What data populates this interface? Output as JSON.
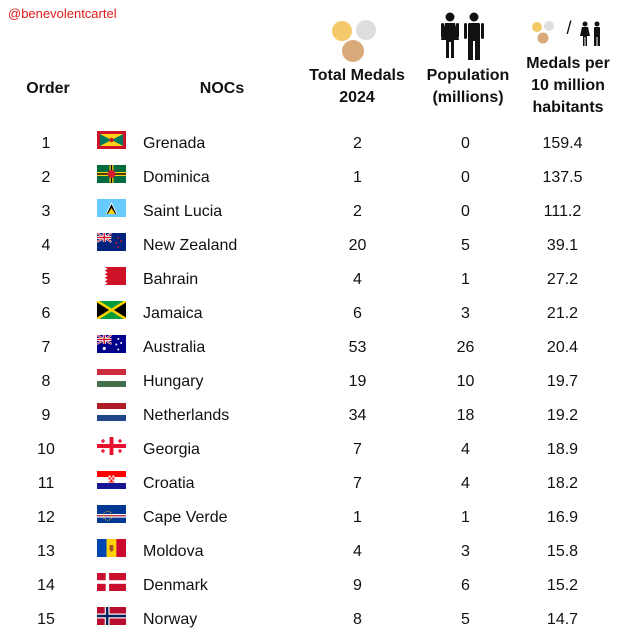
{
  "watermark": "@benevolentcartel",
  "headers": {
    "order": "Order",
    "nocs": "NOCs",
    "total_line1": "Total Medals",
    "total_line2": "2024",
    "pop_line1": "Population",
    "pop_line2": "(millions)",
    "rate_line1": "Medals per",
    "rate_line2": "10 million",
    "rate_line3": "habitants"
  },
  "header_icons": {
    "medals": "medals-icon",
    "population": "man-woman-icon",
    "ratio": "medals-per-people-icon",
    "ratio_separator": "/"
  },
  "colors": {
    "watermark": "#e01b1b",
    "gold": "#f3c969",
    "silver": "#dedede",
    "bronze": "#d9a97a"
  },
  "chart_data": {
    "type": "table",
    "columns": [
      "Order",
      "NOCs",
      "Total Medals 2024",
      "Population (millions)",
      "Medals per 10 million habitants"
    ],
    "rows": [
      {
        "order": "1",
        "noc": "Grenada",
        "flag": "grenada-flag",
        "total": "2",
        "population": "0",
        "rate": "159.4"
      },
      {
        "order": "2",
        "noc": "Dominica",
        "flag": "dominica-flag",
        "total": "1",
        "population": "0",
        "rate": "137.5"
      },
      {
        "order": "3",
        "noc": "Saint Lucia",
        "flag": "saint-lucia-flag",
        "total": "2",
        "population": "0",
        "rate": "111.2"
      },
      {
        "order": "4",
        "noc": "New Zealand",
        "flag": "new-zealand-flag",
        "total": "20",
        "population": "5",
        "rate": "39.1"
      },
      {
        "order": "5",
        "noc": "Bahrain",
        "flag": "bahrain-flag",
        "total": "4",
        "population": "1",
        "rate": "27.2"
      },
      {
        "order": "6",
        "noc": "Jamaica",
        "flag": "jamaica-flag",
        "total": "6",
        "population": "3",
        "rate": "21.2"
      },
      {
        "order": "7",
        "noc": "Australia",
        "flag": "australia-flag",
        "total": "53",
        "population": "26",
        "rate": "20.4"
      },
      {
        "order": "8",
        "noc": "Hungary",
        "flag": "hungary-flag",
        "total": "19",
        "population": "10",
        "rate": "19.7"
      },
      {
        "order": "9",
        "noc": "Netherlands",
        "flag": "netherlands-flag",
        "total": "34",
        "population": "18",
        "rate": "19.2"
      },
      {
        "order": "10",
        "noc": "Georgia",
        "flag": "georgia-flag",
        "total": "7",
        "population": "4",
        "rate": "18.9"
      },
      {
        "order": "11",
        "noc": "Croatia",
        "flag": "croatia-flag",
        "total": "7",
        "population": "4",
        "rate": "18.2"
      },
      {
        "order": "12",
        "noc": "Cape Verde",
        "flag": "cape-verde-flag",
        "total": "1",
        "population": "1",
        "rate": "16.9"
      },
      {
        "order": "13",
        "noc": "Moldova",
        "flag": "moldova-flag",
        "total": "4",
        "population": "3",
        "rate": "15.8"
      },
      {
        "order": "14",
        "noc": "Denmark",
        "flag": "denmark-flag",
        "total": "9",
        "population": "6",
        "rate": "15.2"
      },
      {
        "order": "15",
        "noc": "Norway",
        "flag": "norway-flag",
        "total": "8",
        "population": "5",
        "rate": "14.7"
      }
    ]
  }
}
